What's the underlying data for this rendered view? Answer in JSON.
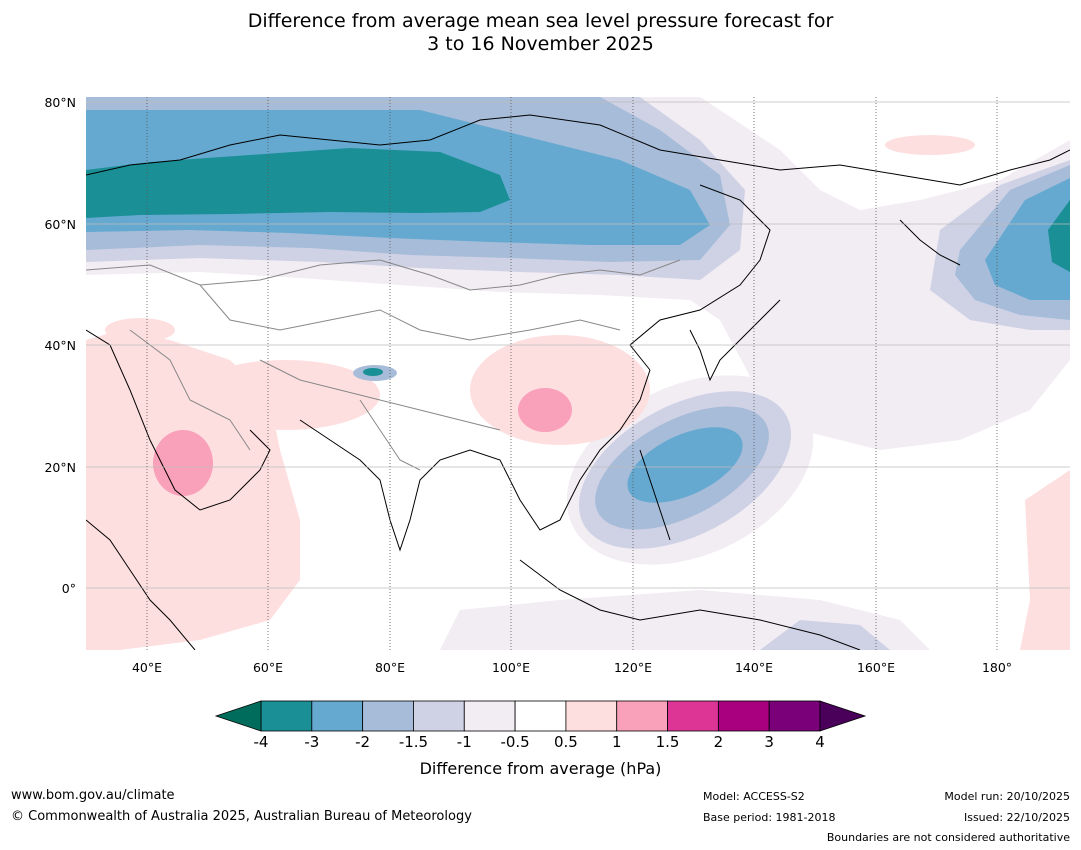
{
  "title": {
    "line1": "Difference from average mean sea level pressure forecast for",
    "line2": "3 to 16 November 2025"
  },
  "map": {
    "lat_labels": [
      "80°N",
      "60°N",
      "40°N",
      "20°N",
      "0°"
    ],
    "lat_values": [
      80,
      60,
      40,
      20,
      0
    ],
    "lon_labels": [
      "40°E",
      "60°E",
      "80°E",
      "100°E",
      "120°E",
      "140°E",
      "160°E",
      "180°"
    ],
    "lon_values": [
      40,
      60,
      80,
      100,
      120,
      140,
      160,
      180
    ],
    "extent": {
      "lon_min": 30,
      "lon_max": 192,
      "lat_min": -10,
      "lat_max": 81
    }
  },
  "colorbar": {
    "ticks": [
      "-4",
      "-3",
      "-2",
      "-1.5",
      "-1",
      "-0.5",
      "0.5",
      "1",
      "1.5",
      "2",
      "3",
      "4"
    ],
    "colors": [
      "#1a8f96",
      "#65a9d0",
      "#a6bcd9",
      "#cfd1e5",
      "#f2ecf3",
      "#ffffff",
      "#fedfe0",
      "#f9a0ba",
      "#dc3596",
      "#a8007e",
      "#790079"
    ],
    "under_color": "#006d5c",
    "over_color": "#4a005a",
    "label": "Difference from average (hPa)"
  },
  "footer": {
    "website": "www.bom.gov.au/climate",
    "copyright": "© Commonwealth of Australia 2025, Australian Bureau of Meteorology",
    "model": "Model: ACCESS-S2",
    "base_period": "Base period: 1981-2018",
    "model_run": "Model run: 20/10/2025",
    "issued": "Issued: 22/10/2025",
    "disclaimer": "Boundaries are not considered authoritative"
  }
}
